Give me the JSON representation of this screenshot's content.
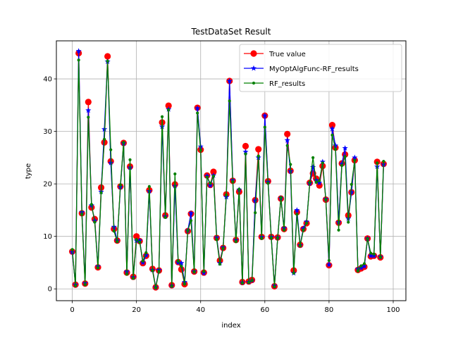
{
  "chart_data": {
    "type": "line",
    "title": "TestDataSet Result",
    "xlabel": "index",
    "ylabel": "type",
    "xlim": [
      -4.95,
      103.95
    ],
    "ylim": [
      -2.25,
      47.25
    ],
    "xticks": [
      0,
      20,
      40,
      60,
      80,
      100
    ],
    "yticks": [
      0,
      10,
      20,
      30,
      40
    ],
    "grid": true,
    "legend_position": "top-right",
    "x": [
      0,
      1,
      2,
      3,
      4,
      5,
      6,
      7,
      8,
      9,
      10,
      11,
      12,
      13,
      14,
      15,
      16,
      17,
      18,
      19,
      20,
      21,
      22,
      23,
      24,
      25,
      26,
      27,
      28,
      29,
      30,
      31,
      32,
      33,
      34,
      35,
      36,
      37,
      38,
      39,
      40,
      41,
      42,
      43,
      44,
      45,
      46,
      47,
      48,
      49,
      50,
      51,
      52,
      53,
      54,
      55,
      56,
      57,
      58,
      59,
      60,
      61,
      62,
      63,
      64,
      65,
      66,
      67,
      68,
      69,
      70,
      71,
      72,
      73,
      74,
      75,
      76,
      77,
      78,
      79,
      80,
      81,
      82,
      83,
      84,
      85,
      86,
      87,
      88,
      89,
      90,
      91,
      92,
      93,
      94,
      95,
      96,
      97
    ],
    "series": [
      {
        "name": "True value",
        "color": "#ff0000",
        "marker": "circle",
        "values": [
          7.1,
          0.8,
          44.9,
          14.4,
          1.0,
          35.6,
          15.5,
          13.3,
          4.1,
          19.3,
          27.9,
          44.3,
          24.3,
          11.4,
          9.2,
          19.5,
          27.8,
          3.1,
          23.3,
          2.3,
          10.0,
          9.1,
          4.9,
          6.3,
          18.8,
          3.8,
          0.3,
          3.5,
          31.7,
          14.0,
          34.9,
          0.7,
          19.9,
          5.1,
          3.7,
          0.9,
          11.0,
          14.3,
          3.3,
          34.5,
          26.5,
          3.1,
          21.6,
          19.8,
          22.3,
          9.7,
          5.4,
          7.8,
          18.0,
          39.6,
          20.6,
          9.3,
          18.5,
          1.3,
          27.2,
          1.4,
          1.7,
          16.9,
          26.6,
          9.9,
          33.0,
          20.5,
          9.9,
          0.5,
          9.8,
          17.2,
          11.4,
          29.5,
          22.5,
          3.5,
          14.6,
          8.4,
          11.4,
          12.5,
          20.2,
          22.0,
          21.0,
          19.7,
          23.4,
          17.0,
          4.5,
          31.2,
          26.9,
          12.6,
          23.9,
          25.6,
          14.0,
          18.4,
          24.5,
          3.6,
          3.9,
          4.2,
          9.6,
          6.2,
          6.3,
          24.2,
          6.0,
          23.8
        ]
      },
      {
        "name": "MyOptAlgFunc-RF_results",
        "color": "#0000ff",
        "marker": "star",
        "values": [
          7.0,
          0.8,
          45.3,
          14.6,
          1.1,
          34.0,
          15.9,
          13.0,
          4.3,
          18.5,
          30.4,
          43.3,
          24.0,
          11.8,
          9.2,
          19.4,
          27.7,
          3.3,
          23.1,
          2.2,
          9.2,
          9.2,
          5.0,
          6.4,
          18.6,
          3.6,
          0.3,
          3.6,
          30.9,
          13.8,
          34.2,
          0.6,
          19.6,
          5.0,
          4.9,
          1.3,
          11.1,
          14.4,
          3.3,
          34.4,
          27.1,
          3.0,
          21.5,
          19.7,
          21.6,
          9.8,
          4.9,
          7.9,
          17.5,
          39.6,
          20.7,
          9.3,
          18.9,
          1.2,
          26.1,
          1.3,
          1.6,
          16.8,
          25.0,
          9.9,
          33.0,
          20.4,
          9.9,
          0.6,
          9.8,
          17.3,
          11.6,
          28.3,
          22.4,
          3.0,
          15.0,
          8.3,
          11.5,
          12.8,
          20.1,
          23.2,
          20.7,
          20.2,
          24.2,
          17.1,
          4.6,
          30.5,
          27.3,
          12.7,
          23.8,
          26.8,
          13.4,
          18.4,
          25.0,
          3.8,
          4.0,
          4.3,
          9.6,
          6.3,
          6.3,
          23.3,
          6.1,
          23.7
        ]
      },
      {
        "name": "RF_results",
        "color": "#008000",
        "marker": "dot",
        "values": [
          7.5,
          0.6,
          43.6,
          14.2,
          0.8,
          32.7,
          16.1,
          12.7,
          4.0,
          18.3,
          28.5,
          43.4,
          26.5,
          11.0,
          9.0,
          19.8,
          27.9,
          2.8,
          24.6,
          2.0,
          9.4,
          8.9,
          5.3,
          6.9,
          19.5,
          3.5,
          0.2,
          3.3,
          32.8,
          13.6,
          34.1,
          0.5,
          21.9,
          5.3,
          4.3,
          0.9,
          11.1,
          13.0,
          3.2,
          33.5,
          26.4,
          3.3,
          21.3,
          20.1,
          21.5,
          9.4,
          4.7,
          7.7,
          17.9,
          35.8,
          20.4,
          9.0,
          19.0,
          1.1,
          25.7,
          1.2,
          1.6,
          14.5,
          25.3,
          9.6,
          30.8,
          20.1,
          9.7,
          0.4,
          9.7,
          17.4,
          11.2,
          27.3,
          23.7,
          3.0,
          14.2,
          8.2,
          11.2,
          12.5,
          20.3,
          25.0,
          20.3,
          20.6,
          24.0,
          17.0,
          5.4,
          29.3,
          26.6,
          11.2,
          23.5,
          25.2,
          12.7,
          19.9,
          24.5,
          3.4,
          4.4,
          4.8,
          9.6,
          6.8,
          6.6,
          24.0,
          6.0,
          24.3
        ]
      }
    ]
  }
}
